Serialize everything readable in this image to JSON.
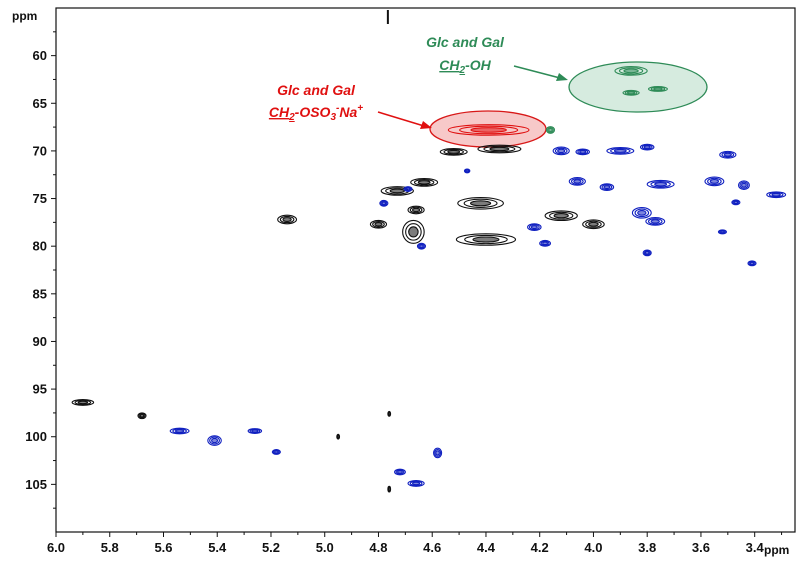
{
  "chart_data": {
    "type": "scatter",
    "title": "",
    "x_unit": "ppm",
    "y_unit": "ppm",
    "xlim": [
      6.0,
      3.25
    ],
    "ylim": [
      55,
      110
    ],
    "x_ticks": [
      "6.0",
      "5.8",
      "5.6",
      "5.4",
      "5.2",
      "5.0",
      "4.8",
      "4.6",
      "4.4",
      "4.2",
      "4.0",
      "3.8",
      "3.6",
      "3.4"
    ],
    "y_ticks": [
      "60",
      "65",
      "70",
      "75",
      "80",
      "85",
      "90",
      "95",
      "100",
      "105"
    ],
    "colors": {
      "black": "#111111",
      "blue": "#1020c0",
      "red": "#e01010",
      "green": "#2e8b57"
    },
    "series": [
      {
        "color": "black",
        "points": [
          {
            "x": 4.35,
            "y": 69.8,
            "w": 0.16,
            "h": 0.8
          },
          {
            "x": 4.52,
            "y": 70.1,
            "w": 0.1,
            "h": 0.7
          },
          {
            "x": 4.63,
            "y": 73.3,
            "w": 0.1,
            "h": 0.8
          },
          {
            "x": 4.73,
            "y": 74.2,
            "w": 0.12,
            "h": 0.9
          },
          {
            "x": 4.66,
            "y": 76.2,
            "w": 0.06,
            "h": 0.8
          },
          {
            "x": 4.67,
            "y": 78.5,
            "w": 0.08,
            "h": 2.4
          },
          {
            "x": 4.42,
            "y": 75.5,
            "w": 0.17,
            "h": 1.2
          },
          {
            "x": 4.4,
            "y": 79.3,
            "w": 0.22,
            "h": 1.2
          },
          {
            "x": 4.12,
            "y": 76.8,
            "w": 0.12,
            "h": 1.0
          },
          {
            "x": 4.0,
            "y": 77.7,
            "w": 0.08,
            "h": 0.9
          },
          {
            "x": 5.14,
            "y": 77.2,
            "w": 0.07,
            "h": 0.9
          },
          {
            "x": 4.8,
            "y": 77.7,
            "w": 0.06,
            "h": 0.8
          },
          {
            "x": 5.9,
            "y": 96.4,
            "w": 0.08,
            "h": 0.6
          },
          {
            "x": 5.68,
            "y": 97.8,
            "w": 0.03,
            "h": 0.6
          },
          {
            "x": 4.76,
            "y": 97.6,
            "w": 0.01,
            "h": 0.5
          },
          {
            "x": 4.76,
            "y": 105.5,
            "w": 0.01,
            "h": 0.6
          },
          {
            "x": 4.95,
            "y": 100.0,
            "w": 0.01,
            "h": 0.5
          }
        ]
      },
      {
        "color": "blue",
        "points": [
          {
            "x": 4.12,
            "y": 70.0,
            "w": 0.06,
            "h": 0.8
          },
          {
            "x": 4.04,
            "y": 70.1,
            "w": 0.05,
            "h": 0.6
          },
          {
            "x": 3.9,
            "y": 70.0,
            "w": 0.1,
            "h": 0.7
          },
          {
            "x": 3.8,
            "y": 69.6,
            "w": 0.05,
            "h": 0.6
          },
          {
            "x": 3.5,
            "y": 70.4,
            "w": 0.06,
            "h": 0.7
          },
          {
            "x": 4.06,
            "y": 73.2,
            "w": 0.06,
            "h": 0.8
          },
          {
            "x": 3.95,
            "y": 73.8,
            "w": 0.05,
            "h": 0.7
          },
          {
            "x": 3.75,
            "y": 73.5,
            "w": 0.1,
            "h": 0.8
          },
          {
            "x": 3.55,
            "y": 73.2,
            "w": 0.07,
            "h": 0.9
          },
          {
            "x": 3.44,
            "y": 73.6,
            "w": 0.04,
            "h": 0.9
          },
          {
            "x": 3.32,
            "y": 74.6,
            "w": 0.07,
            "h": 0.6
          },
          {
            "x": 3.47,
            "y": 75.4,
            "w": 0.03,
            "h": 0.5
          },
          {
            "x": 3.82,
            "y": 76.5,
            "w": 0.07,
            "h": 1.1
          },
          {
            "x": 3.77,
            "y": 77.4,
            "w": 0.07,
            "h": 0.8
          },
          {
            "x": 4.22,
            "y": 78.0,
            "w": 0.05,
            "h": 0.7
          },
          {
            "x": 3.52,
            "y": 78.5,
            "w": 0.03,
            "h": 0.4
          },
          {
            "x": 4.18,
            "y": 79.7,
            "w": 0.04,
            "h": 0.6
          },
          {
            "x": 4.64,
            "y": 80.0,
            "w": 0.03,
            "h": 0.6
          },
          {
            "x": 3.8,
            "y": 80.7,
            "w": 0.03,
            "h": 0.6
          },
          {
            "x": 3.41,
            "y": 81.8,
            "w": 0.03,
            "h": 0.5
          },
          {
            "x": 4.78,
            "y": 75.5,
            "w": 0.03,
            "h": 0.6
          },
          {
            "x": 4.69,
            "y": 74.0,
            "w": 0.03,
            "h": 0.5
          },
          {
            "x": 4.47,
            "y": 72.1,
            "w": 0.02,
            "h": 0.4
          },
          {
            "x": 5.54,
            "y": 99.4,
            "w": 0.07,
            "h": 0.6
          },
          {
            "x": 5.41,
            "y": 100.4,
            "w": 0.05,
            "h": 1.0
          },
          {
            "x": 5.26,
            "y": 99.4,
            "w": 0.05,
            "h": 0.5
          },
          {
            "x": 5.18,
            "y": 101.6,
            "w": 0.03,
            "h": 0.5
          },
          {
            "x": 4.58,
            "y": 101.7,
            "w": 0.03,
            "h": 1.0
          },
          {
            "x": 4.72,
            "y": 103.7,
            "w": 0.04,
            "h": 0.6
          },
          {
            "x": 4.66,
            "y": 104.9,
            "w": 0.06,
            "h": 0.6
          }
        ]
      },
      {
        "color": "red",
        "points": [
          {
            "x": 4.39,
            "y": 67.8,
            "w": 0.3,
            "h": 1.1
          }
        ]
      },
      {
        "color": "green",
        "points": [
          {
            "x": 3.86,
            "y": 61.6,
            "w": 0.12,
            "h": 0.9
          },
          {
            "x": 3.76,
            "y": 63.5,
            "w": 0.07,
            "h": 0.5
          },
          {
            "x": 3.86,
            "y": 63.9,
            "w": 0.06,
            "h": 0.5
          },
          {
            "x": 4.16,
            "y": 67.8,
            "w": 0.03,
            "h": 0.7
          }
        ]
      }
    ],
    "annotations": [
      {
        "id": "green",
        "line1": "Glc and Gal",
        "line2_main": "CH",
        "line2_sub": "2",
        "line2_rest": "-OH",
        "target": {
          "x": 3.84,
          "y": 62.6
        }
      },
      {
        "id": "red",
        "line1": "Glc and Gal",
        "line2_main": "CH",
        "line2_sub": "2",
        "line2_mid": "-OSO",
        "line2_sub2": "3",
        "line2_sup": "-",
        "line2_rest": "Na",
        "line2_sup2": "+",
        "target": {
          "x": 4.39,
          "y": 67.8
        }
      }
    ]
  }
}
